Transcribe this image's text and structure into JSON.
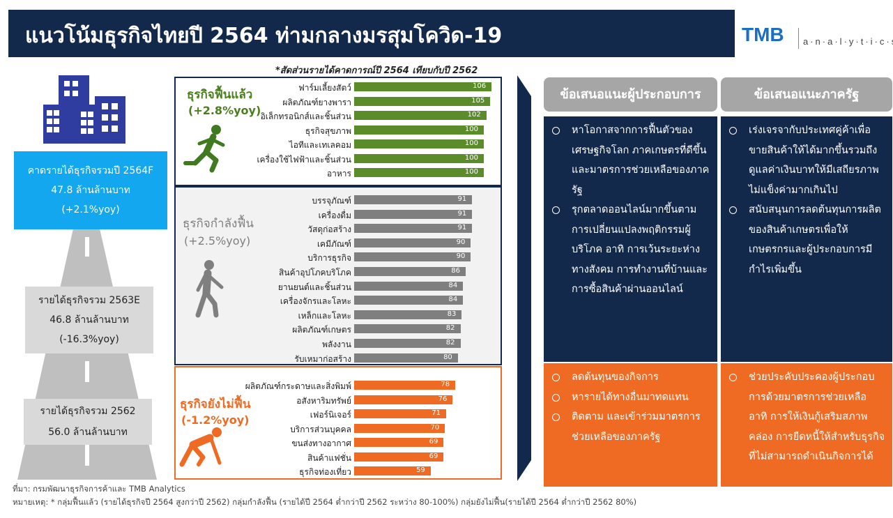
{
  "title": "แนวโน้มธุรกิจไทยปี 2564 ท่ามกลางมรสุมโควิด-19",
  "logo": {
    "brand": "TMB",
    "sub": "a·n·a·l·y·t·i·c·s"
  },
  "note_top": "*สัดส่วนรายได้คาดการณ์ปี 2564 เทียบกับปี 2562",
  "left": {
    "box_2564": [
      "คาดรายได้ธุรกิจรวมปี 2564F",
      "47.8 ล้านล้านบาท",
      "(+2.1%yoy)"
    ],
    "box_2563": [
      "รายได้ธุรกิจรวม 2563E",
      "46.8 ล้านล้านบาท",
      "(-16.3%yoy)"
    ],
    "box_2562": [
      "รายได้ธุรกิจรวม 2562",
      "56.0 ล้านล้านบาท"
    ]
  },
  "colors": {
    "navy": "#13294b",
    "green": "#5b8c2a",
    "gray": "#7f7f7f",
    "orange": "#ef6b23",
    "cyan": "#12a7ef"
  },
  "chart_data": {
    "type": "bar",
    "orientation": "horizontal",
    "xlim": [
      0,
      110
    ],
    "groups": [
      {
        "name": "ธุรกิจฟื้นแล้ว",
        "growth": "(+2.8%yoy)",
        "color": "#5b8c2a",
        "categories": [
          "ฟาร์มเลี้ยงสัตว์",
          "ผลิตภัณฑ์ยางพารา",
          "อิเล็กทรอนิกส์และชิ้นส่วน",
          "ธุรกิจสุขภาพ",
          "ไอทีและเทเลคอม",
          "เครื่องใช้ไฟฟ้าและชิ้นส่วน",
          "อาหาร"
        ],
        "values": [
          106,
          105,
          102,
          100,
          100,
          100,
          100
        ]
      },
      {
        "name": "ธุรกิจกำลังฟื้น",
        "growth": "(+2.5%yoy)",
        "color": "#7f7f7f",
        "categories": [
          "บรรจุภัณฑ์",
          "เครื่องดื่ม",
          "วัสดุก่อสร้าง",
          "เคมีภัณฑ์",
          "บริการธุรกิจ",
          "สินค้าอุปโภคบริโภค",
          "ยานยนต์และชิ้นส่วน",
          "เครื่องจักรและโลหะ",
          "เหล็กและโลหะ",
          "ผลิตภัณฑ์เกษตร",
          "พลังงาน",
          "รับเหมาก่อสร้าง"
        ],
        "values": [
          91,
          91,
          91,
          90,
          90,
          86,
          84,
          84,
          83,
          82,
          82,
          80
        ]
      },
      {
        "name": "ธุรกิจยังไม่ฟื้น",
        "growth": "(-1.2%yoy)",
        "color": "#ef6b23",
        "categories": [
          "ผลิตภัณฑ์กระดาษและสิ่งพิมพ์",
          "อสังหาริมทรัพย์",
          "เฟอร์นิเจอร์",
          "บริการส่วนบุคคล",
          "ขนส่งทางอากาศ",
          "สินค้าแฟชั่น",
          "ธุรกิจท่องเที่ยว"
        ],
        "values": [
          78,
          76,
          71,
          70,
          69,
          69,
          59
        ]
      }
    ]
  },
  "recommend": {
    "biz_header": "ข้อเสนอแนะผู้ประกอบการ",
    "gov_header": "ข้อเสนอแนะภาครัฐ",
    "biz_top": [
      "หาโอกาสจากการฟื้นตัวของเศรษฐกิจโลก ภาคเกษตรที่ดีขึ้น และมาตรการช่วยเหลือของภาครัฐ",
      "รุกตลาดออนไลน์มากขึ้นตามการเปลี่ยนแปลงพฤติกรรมผู้บริโภค อาทิ การเว้นระยะห่างทางสังคม การทำงานที่บ้านและการซื้อสินค้าผ่านออนไลน์"
    ],
    "gov_top": [
      "เร่งเจรจากับประเทศคู่ค้าเพื่อขายสินค้าให้ได้มากขึ้นรวมถึงดูแลค่าเงินบาทให้มีเสถียรภาพไม่แข็งค่ามากเกินไป",
      "สนับสนุนการลดต้นทุนการผลิตของสินค้าเกษตรเพื่อให้เกษตรกรและผู้ประกอบการมีกำไรเพิ่มขึ้น"
    ],
    "biz_bottom": [
      "ลดต้นทุนของกิจการ",
      "หารายได้ทางอื่นมาทดแทน",
      "ติดตาม และเข้าร่วมมาตรการช่วยเหลือของภาครัฐ"
    ],
    "gov_bottom": [
      "ช่วยประคับประคองผู้ประกอบการด้วยมาตรการช่วยเหลือ อาทิ การให้เงินกู้เสริมสภาพคล่อง การยืดหนี้ให้สำหรับธุรกิจที่ไม่สามารถดำเนินกิจการได้"
    ]
  },
  "source": "ที่มา: กรมพัฒนาธุรกิจการค้าและ TMB Analytics",
  "remark": "หมายเหตุ: * กลุ่มฟื้นแล้ว (รายได้ธุรกิจปี 2564 สูงกว่าปี 2562) กลุ่มกำลังฟื้น (รายได้ปี 2564 ต่ำกว่าปี 2562 ระหว่าง 80-100%) กลุ่มยังไม่ฟื้น(รายได้ปี 2564 ต่ำกว่าปี 2562 80%)"
}
